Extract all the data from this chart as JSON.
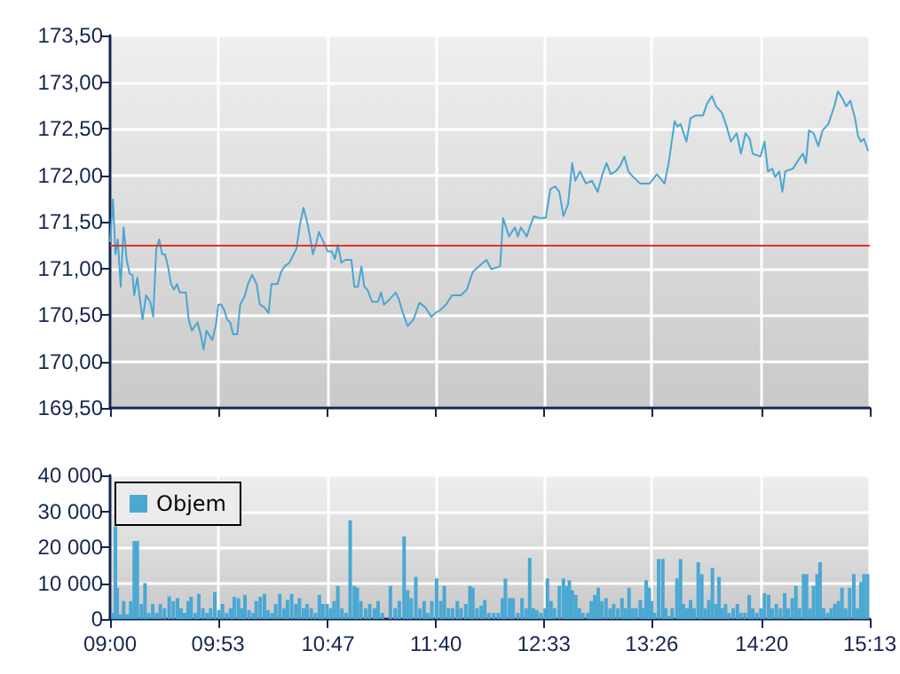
{
  "chart_data": [
    {
      "type": "line",
      "xlim": [
        9,
        15.217
      ],
      "xticks": [
        {
          "value": 9,
          "label": null
        },
        {
          "value": 9.883,
          "label": null
        },
        {
          "value": 10.783,
          "label": null
        },
        {
          "value": 11.667,
          "label": null
        },
        {
          "value": 12.55,
          "label": null
        },
        {
          "value": 13.433,
          "label": null
        },
        {
          "value": 14.333,
          "label": null
        },
        {
          "value": 15.217,
          "label": null
        }
      ],
      "ylim": [
        169.5,
        173.5
      ],
      "yticks": [
        {
          "value": 169.5,
          "label": "169,50"
        },
        {
          "value": 170,
          "label": "170,00"
        },
        {
          "value": 170.5,
          "label": "170,50"
        },
        {
          "value": 171,
          "label": "171,00"
        },
        {
          "value": 171.5,
          "label": "171,50"
        },
        {
          "value": 172,
          "label": "172,00"
        },
        {
          "value": 172.5,
          "label": "172,50"
        },
        {
          "value": 173,
          "label": "173,00"
        },
        {
          "value": 173.5,
          "label": "173,50"
        }
      ],
      "tick_labels": "y",
      "grid": true,
      "legend": false,
      "marker": "none",
      "ref_lines": [
        {
          "axis": "y",
          "value": 171.25,
          "color": "#e03030"
        }
      ],
      "series": [
        {
          "color": "#4aa6d0",
          "x": [
            9.0,
            9.024,
            9.044,
            9.063,
            9.087,
            9.111,
            9.136,
            9.16,
            9.184,
            9.198,
            9.223,
            9.247,
            9.266,
            9.295,
            9.329,
            9.353,
            9.378,
            9.402,
            9.426,
            9.45,
            9.474,
            9.499,
            9.523,
            9.547,
            9.571,
            9.62,
            9.644,
            9.668,
            9.716,
            9.741,
            9.765,
            9.789,
            9.837,
            9.866,
            9.886,
            9.91,
            9.934,
            9.958,
            9.983,
            10.007,
            10.041,
            10.065,
            10.104,
            10.128,
            10.162,
            10.2,
            10.225,
            10.263,
            10.297,
            10.321,
            10.37,
            10.399,
            10.428,
            10.467,
            10.525,
            10.554,
            10.583,
            10.612,
            10.636,
            10.66,
            10.684,
            10.709,
            10.747,
            10.781,
            10.815,
            10.839,
            10.864,
            10.893,
            10.926,
            10.975,
            10.999,
            11.028,
            11.057,
            11.081,
            11.106,
            11.144,
            11.193,
            11.217,
            11.241,
            11.29,
            11.338,
            11.362,
            11.396,
            11.435,
            11.483,
            11.532,
            11.58,
            11.629,
            11.662,
            11.701,
            11.749,
            11.798,
            11.87,
            11.919,
            11.968,
            12.017,
            12.08,
            12.119,
            12.192,
            12.216,
            12.24,
            12.264,
            12.313,
            12.337,
            12.361,
            12.41,
            12.434,
            12.468,
            12.506,
            12.565,
            12.603,
            12.642,
            12.676,
            12.71,
            12.748,
            12.782,
            12.807,
            12.845,
            12.894,
            12.942,
            12.99,
            13.029,
            13.063,
            13.097,
            13.136,
            13.174,
            13.208,
            13.242,
            13.281,
            13.339,
            13.416,
            13.474,
            13.537,
            13.571,
            13.62,
            13.644,
            13.668,
            13.716,
            13.75,
            13.789,
            13.852,
            13.886,
            13.925,
            13.959,
            14.007,
            14.046,
            14.08,
            14.128,
            14.162,
            14.2,
            14.234,
            14.259,
            14.322,
            14.355,
            14.384,
            14.418,
            14.443,
            14.476,
            14.501,
            14.525,
            14.588,
            14.636,
            14.67,
            14.694,
            14.719,
            14.757,
            14.796,
            14.83,
            14.878,
            14.927,
            14.956,
            14.99,
            15.024,
            15.058,
            15.096,
            15.121,
            15.144,
            15.169,
            15.203
          ],
          "values": [
            171.28,
            171.74,
            171.15,
            171.31,
            170.8,
            171.44,
            171.09,
            170.94,
            170.93,
            170.71,
            170.9,
            170.64,
            170.45,
            170.71,
            170.64,
            170.48,
            171.21,
            171.31,
            171.15,
            171.15,
            171.02,
            170.83,
            170.77,
            170.83,
            170.74,
            170.74,
            170.45,
            170.33,
            170.42,
            170.29,
            170.13,
            170.33,
            170.23,
            170.39,
            170.61,
            170.61,
            170.55,
            170.45,
            170.42,
            170.29,
            170.29,
            170.61,
            170.71,
            170.83,
            170.93,
            170.83,
            170.61,
            170.58,
            170.52,
            170.83,
            170.83,
            170.96,
            171.02,
            171.06,
            171.21,
            171.47,
            171.65,
            171.5,
            171.34,
            171.15,
            171.25,
            171.39,
            171.28,
            171.18,
            171.18,
            171.1,
            171.25,
            171.06,
            171.09,
            171.09,
            170.8,
            170.8,
            171.02,
            170.8,
            170.77,
            170.64,
            170.64,
            170.74,
            170.61,
            170.67,
            170.74,
            170.67,
            170.52,
            170.38,
            170.45,
            170.63,
            170.58,
            170.48,
            170.52,
            170.55,
            170.61,
            170.71,
            170.71,
            170.77,
            170.96,
            171.02,
            171.09,
            170.99,
            171.02,
            171.54,
            171.44,
            171.34,
            171.44,
            171.34,
            171.44,
            171.34,
            171.44,
            171.56,
            171.54,
            171.54,
            171.85,
            171.88,
            171.82,
            171.56,
            171.69,
            172.13,
            171.94,
            172.04,
            171.91,
            171.94,
            171.82,
            172.01,
            172.13,
            172.01,
            172.04,
            172.1,
            172.2,
            172.04,
            171.98,
            171.91,
            171.91,
            172.01,
            171.91,
            172.13,
            172.58,
            172.52,
            172.55,
            172.36,
            172.61,
            172.64,
            172.64,
            172.77,
            172.85,
            172.74,
            172.67,
            172.52,
            172.36,
            172.45,
            172.23,
            172.45,
            172.39,
            172.23,
            172.2,
            172.36,
            172.04,
            172.07,
            171.98,
            172.04,
            171.82,
            172.04,
            172.07,
            172.17,
            172.23,
            172.13,
            172.48,
            172.45,
            172.31,
            172.48,
            172.55,
            172.74,
            172.9,
            172.83,
            172.74,
            172.8,
            172.61,
            172.42,
            172.36,
            172.39,
            172.26
          ]
        }
      ]
    },
    {
      "type": "bar",
      "xlim": [
        9,
        15.217
      ],
      "xticks": [
        {
          "value": 9,
          "label": "09:00"
        },
        {
          "value": 9.883,
          "label": "09:53"
        },
        {
          "value": 10.783,
          "label": "10:47"
        },
        {
          "value": 11.667,
          "label": "11:40"
        },
        {
          "value": 12.55,
          "label": "12:33"
        },
        {
          "value": 13.433,
          "label": "13:26"
        },
        {
          "value": 14.333,
          "label": "14:20"
        },
        {
          "value": 15.217,
          "label": "15:13"
        }
      ],
      "ylim": [
        0,
        40000
      ],
      "yticks": [
        {
          "value": 0,
          "label": "0"
        },
        {
          "value": 10000,
          "label": "10 000"
        },
        {
          "value": 20000,
          "label": "20 000"
        },
        {
          "value": 30000,
          "label": "30 000"
        },
        {
          "value": 40000,
          "label": "40 000"
        }
      ],
      "grid": true,
      "legend": "top left",
      "series": [
        {
          "name": "Objem",
          "color": "#4aa8d3",
          "x": [
            9.024,
            9.044,
            9.058,
            9.082,
            9.111,
            9.14,
            9.169,
            9.198,
            9.223,
            9.257,
            9.286,
            9.315,
            9.349,
            9.382,
            9.411,
            9.445,
            9.484,
            9.518,
            9.552,
            9.581,
            9.61,
            9.639,
            9.663,
            9.697,
            9.726,
            9.76,
            9.794,
            9.823,
            9.857,
            9.891,
            9.92,
            9.954,
            9.987,
            10.016,
            10.05,
            10.075,
            10.104,
            10.137,
            10.171,
            10.196,
            10.229,
            10.263,
            10.292,
            10.326,
            10.355,
            10.389,
            10.423,
            10.452,
            10.486,
            10.52,
            10.549,
            10.583,
            10.612,
            10.646,
            10.68,
            10.713,
            10.742,
            10.776,
            10.805,
            10.834,
            10.864,
            10.897,
            10.931,
            10.965,
            10.999,
            11.023,
            11.052,
            11.091,
            11.125,
            11.164,
            11.193,
            11.227,
            11.294,
            11.333,
            11.367,
            11.406,
            11.435,
            11.464,
            11.502,
            11.536,
            11.57,
            11.599,
            11.633,
            11.672,
            11.706,
            11.735,
            11.769,
            11.803,
            11.841,
            11.872,
            11.911,
            11.945,
            11.969,
            12.003,
            12.037,
            12.066,
            12.1,
            12.139,
            12.177,
            12.211,
            12.235,
            12.269,
            12.298,
            12.337,
            12.371,
            12.405,
            12.434,
            12.463,
            12.492,
            12.526,
            12.56,
            12.579,
            12.608,
            12.637,
            12.676,
            12.71,
            12.734,
            12.758,
            12.782,
            12.811,
            12.84,
            12.869,
            12.908,
            12.937,
            12.966,
            12.995,
            13.024,
            13.058,
            13.092,
            13.121,
            13.155,
            13.189,
            13.218,
            13.247,
            13.276,
            13.305,
            13.339,
            13.363,
            13.387,
            13.412,
            13.431,
            13.455,
            13.489,
            13.523,
            13.547,
            13.576,
            13.6,
            13.639,
            13.668,
            13.692,
            13.721,
            13.75,
            13.779,
            13.813,
            13.842,
            13.871,
            13.9,
            13.929,
            13.959,
            13.983,
            14.007,
            14.036,
            14.065,
            14.099,
            14.133,
            14.162,
            14.196,
            14.23,
            14.259,
            14.292,
            14.326,
            14.355,
            14.389,
            14.418,
            14.452,
            14.486,
            14.52,
            14.549,
            14.583,
            14.612,
            14.641,
            14.675,
            14.699,
            14.728,
            14.757,
            14.786,
            14.81,
            14.839,
            14.873,
            14.902,
            14.931,
            14.96,
            14.989,
            15.019,
            15.052,
            15.086,
            15.115,
            15.144,
            15.169,
            15.198
          ],
          "values": [
            1700,
            25800,
            8700,
            1300,
            5000,
            1300,
            5000,
            21700,
            21700,
            4200,
            10000,
            1700,
            4200,
            1700,
            4200,
            3000,
            6300,
            5000,
            5800,
            3000,
            1700,
            5000,
            6200,
            1700,
            7000,
            3000,
            1700,
            3000,
            7500,
            2500,
            4200,
            1700,
            3000,
            6200,
            5800,
            3000,
            6700,
            2500,
            1700,
            5000,
            6200,
            7000,
            2500,
            1700,
            4200,
            7000,
            3000,
            5300,
            7000,
            4200,
            5800,
            3000,
            4200,
            3000,
            1700,
            6700,
            4200,
            4200,
            3000,
            5000,
            9200,
            3000,
            1700,
            27500,
            9200,
            8700,
            5000,
            3000,
            4200,
            3000,
            5000,
            1700,
            9200,
            3000,
            5000,
            23000,
            8000,
            5800,
            11700,
            3000,
            5000,
            1700,
            5000,
            11300,
            5000,
            9200,
            3000,
            3000,
            5000,
            3000,
            4200,
            9200,
            8700,
            3000,
            3700,
            5300,
            1700,
            1700,
            1700,
            5800,
            11300,
            5800,
            5800,
            1700,
            5800,
            3000,
            17000,
            3000,
            2500,
            1700,
            3000,
            11300,
            5000,
            3000,
            9200,
            11300,
            9200,
            10800,
            8000,
            6700,
            3000,
            1700,
            1700,
            5000,
            6700,
            8700,
            5000,
            5800,
            3000,
            4200,
            3000,
            5800,
            3000,
            8700,
            3000,
            3000,
            5300,
            3000,
            10800,
            8700,
            5000,
            1700,
            16700,
            16700,
            3000,
            800,
            3000,
            11300,
            16700,
            4200,
            3000,
            5300,
            3000,
            15800,
            12500,
            3000,
            5300,
            14200,
            4200,
            11700,
            3000,
            4200,
            1700,
            3000,
            4200,
            1700,
            1700,
            6700,
            3000,
            1700,
            3000,
            7200,
            6700,
            3000,
            4200,
            3000,
            7200,
            3000,
            5800,
            9200,
            3000,
            12500,
            12500,
            3000,
            9200,
            12500,
            15800,
            3000,
            1700,
            3000,
            4200,
            5000,
            8700,
            3000,
            8700,
            12500,
            3000,
            10300,
            12500,
            12500
          ]
        }
      ]
    }
  ]
}
